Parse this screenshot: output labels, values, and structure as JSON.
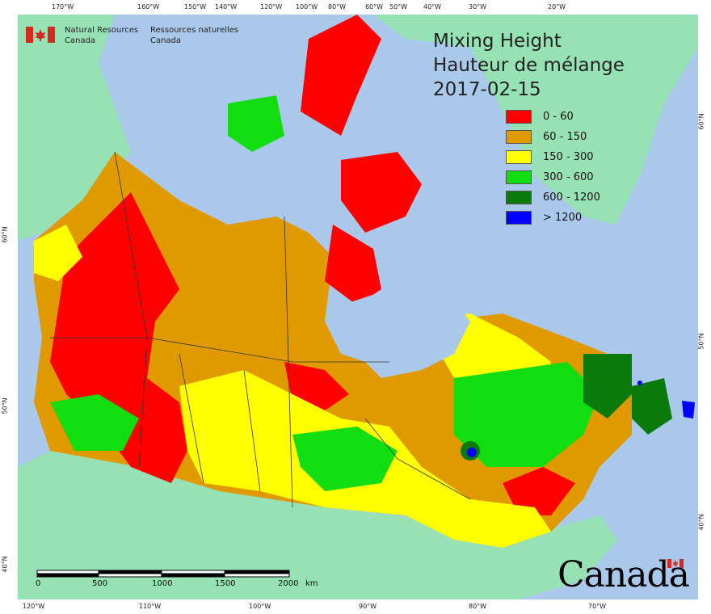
{
  "header": {
    "org_en_line1": "Natural Resources",
    "org_en_line2": "Canada",
    "org_fr_line1": "Ressources naturelles",
    "org_fr_line2": "Canada"
  },
  "title": {
    "line1": "Mixing Height",
    "line2": "Hauteur de mélange",
    "date": "2017-02-15"
  },
  "legend": [
    {
      "label": "0 - 60",
      "color": "#ff0000"
    },
    {
      "label": "60 - 150",
      "color": "#e09a00"
    },
    {
      "label": "150 - 300",
      "color": "#ffff00"
    },
    {
      "label": "300 - 600",
      "color": "#11dd11"
    },
    {
      "label": "600 - 1200",
      "color": "#0a7a0a"
    },
    {
      "label": "> 1200",
      "color": "#0000ff"
    }
  ],
  "graticule": {
    "top": [
      "170°W",
      "160°W",
      "150°W",
      "140°W",
      "120°W",
      "100°W",
      "80°W",
      "60°W",
      "50°W",
      "40°W",
      "30°W",
      "20°W"
    ],
    "bottom": [
      "120°W",
      "110°W",
      "100°W",
      "90°W",
      "80°W",
      "70°W"
    ],
    "left": [
      "60°N",
      "50°N",
      "40°N"
    ],
    "right": [
      "60°N",
      "50°N",
      "40°N"
    ]
  },
  "scale_bar": {
    "labels": [
      "0",
      "500",
      "1000",
      "1500",
      "2000"
    ],
    "unit": "km"
  },
  "wordmark": "Canada",
  "colors": {
    "ocean": "#aac8ea",
    "land_other": "#96e2b4",
    "boundary": "#333333"
  }
}
